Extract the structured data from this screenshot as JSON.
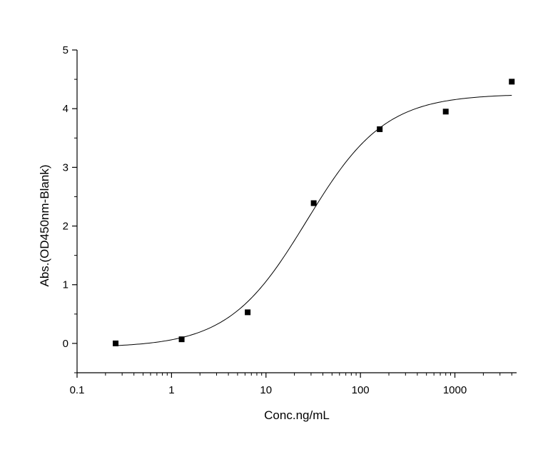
{
  "chart_data": {
    "type": "scatter",
    "xlabel": "Conc.ng/mL",
    "ylabel": "Abs.(OD450nm-Blank)",
    "x_scale": "log",
    "xlim": [
      0.1,
      4500
    ],
    "ylim": [
      -0.5,
      5
    ],
    "x_ticks": [
      0.1,
      1,
      10,
      100,
      1000
    ],
    "x_tick_labels": [
      "0.1",
      "1",
      "10",
      "100",
      "1000"
    ],
    "y_ticks": [
      0,
      1,
      2,
      3,
      4,
      5
    ],
    "y_tick_labels": [
      "0",
      "1",
      "2",
      "3",
      "4",
      "5"
    ],
    "grid": false,
    "points": {
      "x": [
        0.256,
        1.28,
        6.4,
        32,
        160,
        800,
        4000
      ],
      "y": [
        0.0,
        0.07,
        0.53,
        2.39,
        3.65,
        3.95,
        4.46
      ]
    },
    "fit_curve": {
      "type": "4PL",
      "bottom": -0.07,
      "top": 4.25,
      "ec50": 27,
      "hill": 1.05,
      "x_range": [
        0.256,
        4000
      ]
    },
    "colors": {
      "marker": "#000000",
      "curve": "#000000",
      "axis": "#000000"
    }
  }
}
